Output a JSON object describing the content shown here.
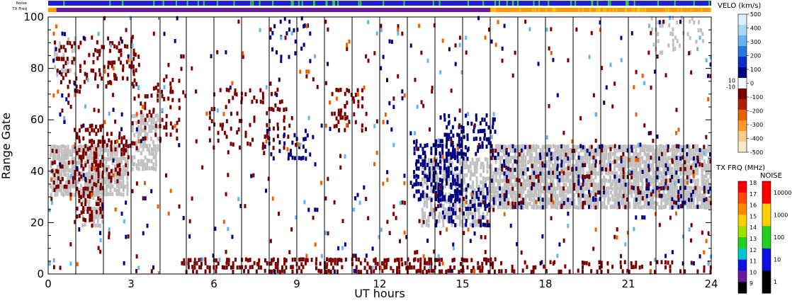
{
  "chart_data": {
    "type": "heatmap",
    "xlabel": "UT hours",
    "ylabel": "Range Gate",
    "xlim": [
      0,
      24
    ],
    "ylim": [
      0,
      100
    ],
    "x_ticks": [
      0,
      3,
      6,
      9,
      12,
      15,
      18,
      21,
      24
    ],
    "y_ticks": [
      0,
      20,
      40,
      60,
      80,
      100
    ],
    "beam_boundaries_ut": [
      1.0,
      2.0,
      3.0,
      4.05,
      5.0,
      6.0,
      7.0,
      8.0,
      9.0,
      10.0,
      11.0,
      12.0,
      13.0,
      14.0,
      15.0,
      16.0,
      17.0,
      18.0,
      19.0,
      20.0,
      21.0,
      22.0,
      23.0
    ],
    "top_strips": {
      "noise_label": "Noise",
      "txfreq_label": "TX Freq",
      "noise_color": "#2020d8",
      "noise_flecks_color": "#30d040",
      "txfreq_segments": [
        {
          "from": 0,
          "to": 16,
          "color": "#6a1a9a",
          "label_mhz": 10
        },
        {
          "from": 16,
          "to": 24,
          "color": "#ff9a00",
          "label_mhz": 15
        }
      ]
    },
    "velocity_colorbar": {
      "title": "VELO (km/s)",
      "ticks": [
        "500",
        "400",
        "300",
        "200",
        "100",
        "0",
        "-100",
        "-200",
        "-300",
        "-400",
        "-500"
      ],
      "deadband_labels": [
        "10",
        "-10"
      ],
      "stops": [
        "#d8f0ff",
        "#a8d8f8",
        "#64b4f0",
        "#2878e0",
        "#0a30c8",
        "#000080",
        "#ffffff",
        "#7a0000",
        "#b41e00",
        "#e86000",
        "#ff9a28",
        "#ffcc88",
        "#ffe8c8"
      ]
    },
    "txfreq_colorbar": {
      "title": "TX FRQ (MHz)",
      "ticks": [
        "18",
        "17",
        "16",
        "15",
        "14",
        "13",
        "12",
        "11",
        "10",
        "9"
      ],
      "colors": [
        "#ff0000",
        "#ff4a00",
        "#ff8800",
        "#ffd000",
        "#a0e000",
        "#20d020",
        "#00c8d0",
        "#1010e0",
        "#6a1a9a",
        "#000000"
      ]
    },
    "noise_colorbar": {
      "title": "NOISE",
      "ticks": [
        "10000",
        "1000",
        "100",
        "10",
        "1"
      ],
      "colors": [
        "#ff0000",
        "#ffd000",
        "#20d020",
        "#1010e0",
        "#000000"
      ]
    },
    "ground_scatter_color": "#c0c0c0",
    "scatter_regions": [
      {
        "kind": "ground",
        "x0": 0.05,
        "x1": 2.9,
        "y0": 30,
        "y1": 50,
        "d": 0.8
      },
      {
        "kind": "ground",
        "x0": 1.2,
        "x1": 2.0,
        "y0": 18,
        "y1": 32,
        "d": 0.7
      },
      {
        "kind": "ground",
        "x0": 3.0,
        "x1": 4.0,
        "y0": 40,
        "y1": 62,
        "d": 0.6
      },
      {
        "kind": "ground",
        "x0": 0.2,
        "x1": 1.0,
        "y0": 75,
        "y1": 92,
        "d": 0.35
      },
      {
        "kind": "ground",
        "x0": 13.5,
        "x1": 16.0,
        "y0": 18,
        "y1": 45,
        "d": 0.55
      },
      {
        "kind": "ground",
        "x0": 16.0,
        "x1": 24.0,
        "y0": 25,
        "y1": 50,
        "d": 0.85
      },
      {
        "kind": "ground",
        "x0": 21.8,
        "x1": 23.8,
        "y0": 85,
        "y1": 100,
        "d": 0.15
      },
      {
        "kind": "vel",
        "x0": 0.1,
        "x1": 1.0,
        "y0": 30,
        "y1": 50,
        "d": 0.18,
        "c": "#7a0000"
      },
      {
        "kind": "vel",
        "x0": 1.0,
        "x1": 2.0,
        "y0": 20,
        "y1": 58,
        "d": 0.35,
        "c": "#7a0000"
      },
      {
        "kind": "vel",
        "x0": 2.0,
        "x1": 3.0,
        "y0": 35,
        "y1": 55,
        "d": 0.25,
        "c": "#7a0000"
      },
      {
        "kind": "vel",
        "x0": 0.2,
        "x1": 3.2,
        "y0": 72,
        "y1": 92,
        "d": 0.22,
        "c": "#7a0000"
      },
      {
        "kind": "vel",
        "x0": 3.0,
        "x1": 5.0,
        "y0": 50,
        "y1": 85,
        "d": 0.12,
        "c": "#7a0000"
      },
      {
        "kind": "vel",
        "x0": 5.8,
        "x1": 8.8,
        "y0": 48,
        "y1": 72,
        "d": 0.12,
        "c": "#7a0000"
      },
      {
        "kind": "vel",
        "x0": 7.8,
        "x1": 9.5,
        "y0": 44,
        "y1": 56,
        "d": 0.2,
        "c": "#000080"
      },
      {
        "kind": "vel",
        "x0": 10.0,
        "x1": 11.4,
        "y0": 55,
        "y1": 72,
        "d": 0.18,
        "c": "#7a0000"
      },
      {
        "kind": "vel",
        "x0": 8.0,
        "x1": 9.5,
        "y0": 82,
        "y1": 100,
        "d": 0.12,
        "c": "#000080"
      },
      {
        "kind": "vel",
        "x0": 13.2,
        "x1": 15.0,
        "y0": 28,
        "y1": 52,
        "d": 0.45,
        "c": "#000080"
      },
      {
        "kind": "vel",
        "x0": 14.0,
        "x1": 16.0,
        "y0": 18,
        "y1": 35,
        "d": 0.25,
        "c": "#000080"
      },
      {
        "kind": "vel",
        "x0": 14.3,
        "x1": 16.2,
        "y0": 44,
        "y1": 62,
        "d": 0.25,
        "c": "#000080"
      },
      {
        "kind": "vel",
        "x0": 16.0,
        "x1": 24.0,
        "y0": 25,
        "y1": 50,
        "d": 0.1,
        "c": "#000080"
      },
      {
        "kind": "vel",
        "x0": 16.0,
        "x1": 24.0,
        "y0": 25,
        "y1": 50,
        "d": 0.06,
        "c": "#7a0000"
      },
      {
        "kind": "vel",
        "x0": 4.8,
        "x1": 16.2,
        "y0": 0,
        "y1": 6,
        "d": 0.4,
        "c": "#7a0000"
      },
      {
        "kind": "vel",
        "x0": 16.2,
        "x1": 24.0,
        "y0": 0,
        "y1": 5,
        "d": 0.2,
        "c": "#7a0000"
      },
      {
        "kind": "vel",
        "x0": 0.0,
        "x1": 24.0,
        "y0": 0,
        "y1": 100,
        "d": 0.012,
        "c": "#7a0000"
      },
      {
        "kind": "vel",
        "x0": 0.0,
        "x1": 24.0,
        "y0": 0,
        "y1": 100,
        "d": 0.008,
        "c": "#000080"
      },
      {
        "kind": "vel",
        "x0": 0.0,
        "x1": 24.0,
        "y0": 0,
        "y1": 100,
        "d": 0.005,
        "c": "#e86000"
      },
      {
        "kind": "vel",
        "x0": 0.0,
        "x1": 24.0,
        "y0": 0,
        "y1": 100,
        "d": 0.004,
        "c": "#64b4f0"
      }
    ]
  }
}
